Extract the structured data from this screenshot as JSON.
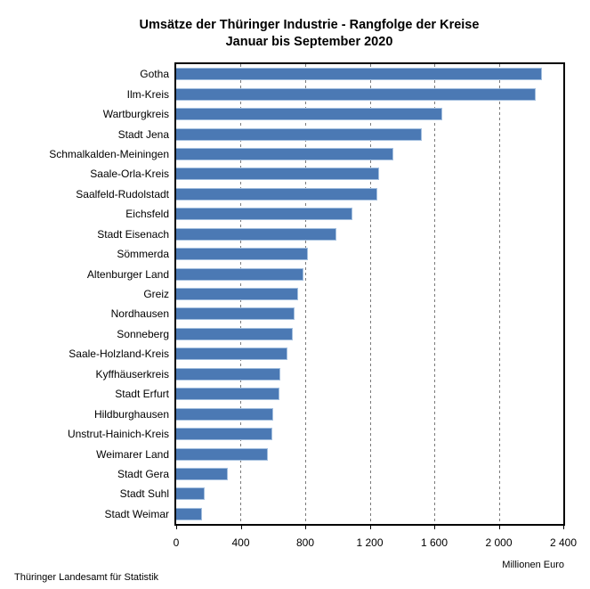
{
  "title": {
    "line1": "Umsätze der Thüringer Industrie - Rangfolge der Kreise",
    "line2": "Januar bis September 2020"
  },
  "axis": {
    "unit_label": "Millionen Euro"
  },
  "footer": {
    "source": "Thüringer Landesamt für Statistik"
  },
  "colors": {
    "bar_fill": "#4b79b4",
    "bar_border": "#a3bfdf",
    "grid": "#7a7a7a",
    "axis": "#000000"
  },
  "chart_data": {
    "type": "bar",
    "orientation": "horizontal",
    "title": "Umsätze der Thüringer Industrie - Rangfolge der Kreise Januar bis September 2020",
    "xlabel": "Millionen Euro",
    "ylabel": "",
    "xlim": [
      0,
      2400
    ],
    "grid": true,
    "grid_style": "dashed-vertical",
    "legend": false,
    "xticks": [
      0,
      400,
      800,
      1200,
      1600,
      2000,
      2400
    ],
    "xtick_labels": [
      "0",
      "400",
      "800",
      "1 200",
      "1 600",
      "2 000",
      "2 400"
    ],
    "categories": [
      "Gotha",
      "Ilm-Kreis",
      "Wartburgkreis",
      "Stadt Jena",
      "Schmalkalden-Meiningen",
      "Saale-Orla-Kreis",
      "Saalfeld-Rudolstadt",
      "Eichsfeld",
      "Stadt Eisenach",
      "Sömmerda",
      "Altenburger Land",
      "Greiz",
      "Nordhausen",
      "Sonneberg",
      "Saale-Holzland-Kreis",
      "Kyffhäuserkreis",
      "Stadt Erfurt",
      "Hildburghausen",
      "Unstrut-Hainich-Kreis",
      "Weimarer Land",
      "Stadt Gera",
      "Stadt Suhl",
      "Stadt Weimar"
    ],
    "values": [
      2270,
      2230,
      1650,
      1525,
      1345,
      1260,
      1245,
      1090,
      995,
      815,
      790,
      755,
      735,
      725,
      690,
      645,
      640,
      600,
      598,
      570,
      320,
      175,
      160
    ]
  }
}
